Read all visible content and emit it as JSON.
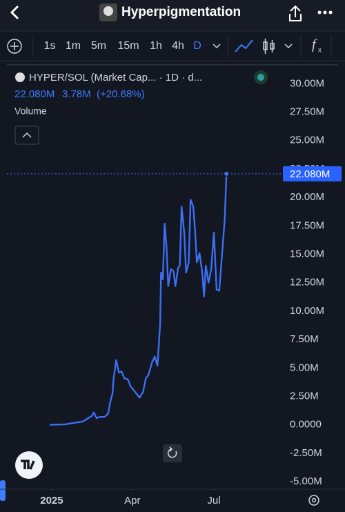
{
  "header": {
    "title": "Hyperpigmentation"
  },
  "toolbar": {
    "intervals": [
      "1s",
      "1m",
      "5m",
      "15m",
      "1h",
      "4h",
      "D"
    ],
    "active": "D"
  },
  "chart_data": {
    "type": "line",
    "title": "HYPER/SOL (Market Cap... · 1D · d...",
    "info": {
      "last": "22.080M",
      "change": "3.78M",
      "change_pct": "(+20.68%)"
    },
    "pane_label": "Volume",
    "x": [
      -2,
      15,
      27,
      35,
      41,
      45,
      47,
      50,
      54,
      59,
      63,
      65,
      68,
      69,
      72,
      75,
      78,
      81,
      85,
      88,
      93,
      98,
      102,
      105,
      108,
      112,
      115,
      118,
      121,
      122,
      124,
      126,
      128,
      130,
      133,
      136,
      138,
      141,
      143,
      145,
      148,
      150,
      153,
      155,
      158,
      160,
      162,
      165,
      168,
      170,
      172,
      175,
      178,
      181,
      184,
      187,
      190,
      193,
      195
    ],
    "series": [
      {
        "name": "HYPER/SOL",
        "color": "#3d6ff5",
        "values": [
          0,
          0.05,
          0.2,
          0.3,
          0.6,
          0.8,
          1.1,
          0.6,
          0.7,
          0.7,
          1.0,
          1.9,
          2.8,
          4.0,
          5.7,
          4.6,
          4.7,
          4.1,
          4.0,
          3.4,
          2.9,
          2.4,
          2.9,
          4.1,
          4.4,
          5.5,
          6.0,
          5.2,
          8.9,
          13.4,
          12.8,
          17.7,
          15.8,
          12.2,
          13.7,
          13.5,
          12.2,
          13.8,
          14.0,
          19.2,
          16.8,
          13.4,
          14.3,
          19.8,
          19.2,
          17.1,
          14.3,
          15.1,
          13.4,
          11.3,
          14.0,
          12.5,
          13.7,
          16.9,
          11.9,
          11.8,
          14.9,
          18.0,
          22.08
        ]
      }
    ],
    "xlim": [
      -50,
      258
    ],
    "xticks": [
      {
        "value": 0,
        "label": "2025"
      },
      {
        "value": 90,
        "label": "Apr"
      },
      {
        "value": 181,
        "label": "Jul"
      }
    ],
    "ylim": [
      -5.6,
      31.6
    ],
    "yticks": [
      {
        "value": 30,
        "label": "30.00M"
      },
      {
        "value": 27.5,
        "label": "27.50M"
      },
      {
        "value": 25,
        "label": "25.00M"
      },
      {
        "value": 22.5,
        "label": "22.50M"
      },
      {
        "value": 20,
        "label": "20.00M"
      },
      {
        "value": 17.5,
        "label": "17.50M"
      },
      {
        "value": 15,
        "label": "15.00M"
      },
      {
        "value": 12.5,
        "label": "12.50M"
      },
      {
        "value": 10,
        "label": "10.00M"
      },
      {
        "value": 7.5,
        "label": "7.50M"
      },
      {
        "value": 5,
        "label": "5.00M"
      },
      {
        "value": 2.5,
        "label": "2.50M"
      },
      {
        "value": 0,
        "label": "0.0000"
      },
      {
        "value": -2.5,
        "label": "-2.50M"
      },
      {
        "value": -5,
        "label": "-5.00M"
      }
    ],
    "grid": false
  }
}
